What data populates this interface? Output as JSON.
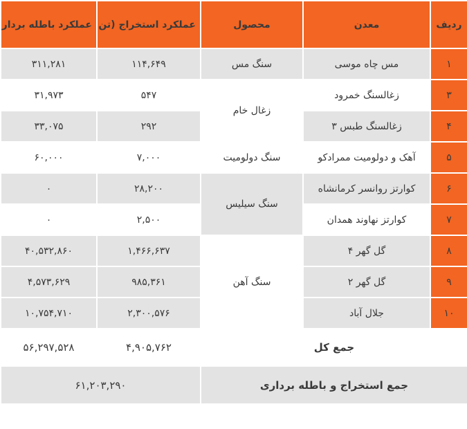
{
  "headers": {
    "radif": "ردیف",
    "madan": "معدن",
    "mahsool": "محصول",
    "estekhraj": "عملکرد استخراج (تن)",
    "bateleh": "عملکرد باطله برداری (تن)"
  },
  "rows": [
    {
      "radif": "۱",
      "madan": "مس چاه موسی",
      "estekhraj": "۱۱۴,۶۴۹",
      "bateleh": "۳۱۱,۲۸۱"
    },
    {
      "radif": "۳",
      "madan": "زغالسنگ خمرود",
      "estekhraj": "۵۴۷",
      "bateleh": "۳۱,۹۷۳"
    },
    {
      "radif": "۴",
      "madan": "زغالسنگ طبس ۳",
      "estekhraj": "۲۹۲",
      "bateleh": "۳۳,۰۷۵"
    },
    {
      "radif": "۵",
      "madan": "آهک و دولومیت ممرادکو",
      "estekhraj": "۷,۰۰۰",
      "bateleh": "۶۰,۰۰۰"
    },
    {
      "radif": "۶",
      "madan": "کوارتز روانسر کرمانشاه",
      "estekhraj": "۲۸,۲۰۰",
      "bateleh": "۰"
    },
    {
      "radif": "۷",
      "madan": "کوارتز نهاوند همدان",
      "estekhraj": "۲,۵۰۰",
      "bateleh": "۰"
    },
    {
      "radif": "۸",
      "madan": "گل گهر ۴",
      "estekhraj": "۱,۴۶۶,۶۳۷",
      "bateleh": "۴۰,۵۳۲,۸۶۰"
    },
    {
      "radif": "۹",
      "madan": "گل گهر ۲",
      "estekhraj": "۹۸۵,۳۶۱",
      "bateleh": "۴,۵۷۳,۶۲۹"
    },
    {
      "radif": "۱۰",
      "madan": "جلال آباد",
      "estekhraj": "۲,۳۰۰,۵۷۶",
      "bateleh": "۱۰,۷۵۴,۷۱۰"
    }
  ],
  "products": {
    "mes": "سنگ مس",
    "zoghal": "زغال خام",
    "dolomit": "سنگ دولومیت",
    "silis": "سنگ سیلیس",
    "ahan": "سنگ آهن"
  },
  "total": {
    "label": "جمع کل",
    "estekhraj": "۴,۹۰۵,۷۶۲",
    "bateleh": "۵۶,۲۹۷,۵۲۸"
  },
  "grand": {
    "label": "جمع استخراج و باطله برداری",
    "value": "۶۱,۲۰۳,۲۹۰"
  }
}
